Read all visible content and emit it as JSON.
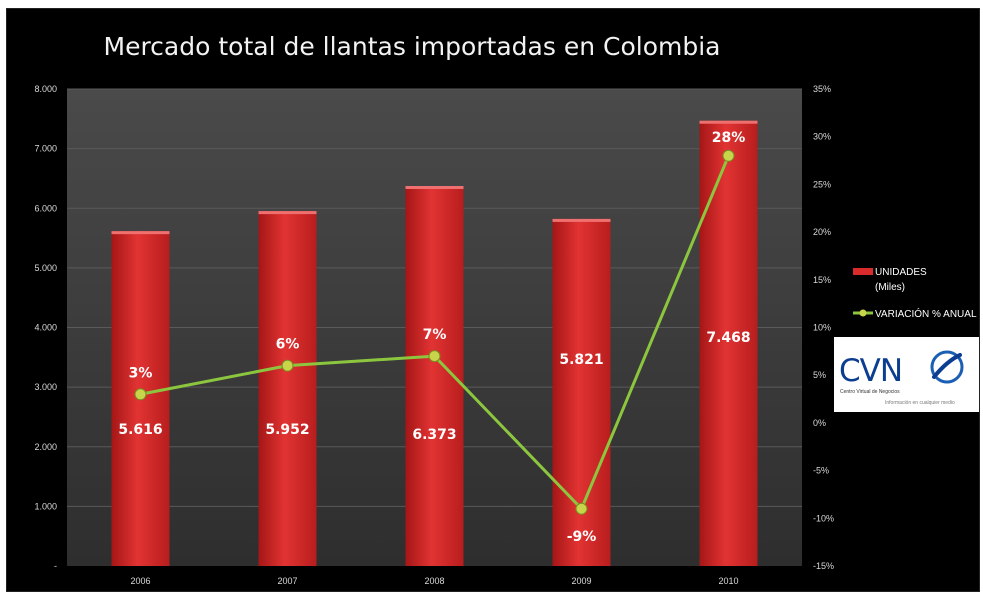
{
  "chart_data": {
    "type": "bar+line",
    "title": "Mercado total de llantas importadas en Colombia",
    "categories": [
      "2006",
      "2007",
      "2008",
      "2009",
      "2010"
    ],
    "series": [
      {
        "name": "UNIDADES (Miles)",
        "type": "bar",
        "axis": "left",
        "values": [
          5616,
          5952,
          6373,
          5821,
          7468
        ],
        "labels": [
          "5.616",
          "5.952",
          "6.373",
          "5.821",
          "7.468"
        ]
      },
      {
        "name": "VARIACIÓN % ANUAL",
        "type": "line",
        "axis": "right",
        "values": [
          3,
          6,
          7,
          -9,
          28
        ],
        "labels": [
          "3%",
          "6%",
          "7%",
          "-9%",
          "28%"
        ]
      }
    ],
    "y_left": {
      "lim": [
        0,
        8000
      ],
      "ticks": [
        0,
        1000,
        2000,
        3000,
        4000,
        5000,
        6000,
        7000,
        8000
      ],
      "tick_labels": [
        "-",
        "1.000",
        "2.000",
        "3.000",
        "4.000",
        "5.000",
        "6.000",
        "7.000",
        "8.000"
      ]
    },
    "y_right": {
      "lim": [
        -15,
        35
      ],
      "ticks": [
        -15,
        -10,
        -5,
        0,
        5,
        10,
        15,
        20,
        25,
        30,
        35
      ],
      "tick_labels": [
        "-15%",
        "-10%",
        "-5%",
        "0%",
        "5%",
        "10%",
        "15%",
        "20%",
        "25%",
        "30%",
        "35%"
      ]
    },
    "legend": {
      "placement": "right",
      "entries": [
        {
          "label_line1": "UNIDADES",
          "label_line2": "(Miles)",
          "color": "#d92b2b"
        },
        {
          "label_line1": "VARIACIÓN % ANUAL",
          "label_line2": "",
          "color": "#8cc63f"
        }
      ]
    },
    "grid": true
  },
  "colors": {
    "background": "#000000",
    "plot_area": "#3a3a3a",
    "bar": "#d92b2b",
    "line": "#8cc63f",
    "marker": "#c8d44a"
  },
  "logo": {
    "text": "CVN",
    "subtitle": "Centro Virtual de Negocios",
    "tagline": "Información en cualquier medio",
    "icon": "globe-swoosh-icon"
  }
}
